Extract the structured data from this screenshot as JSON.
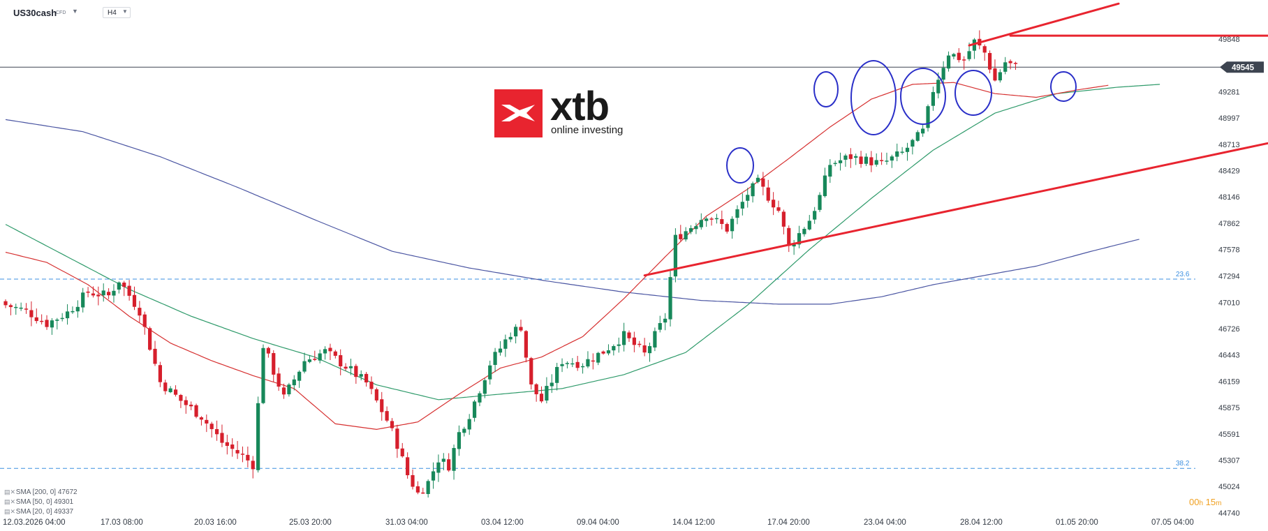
{
  "header": {
    "symbol": "US30cash",
    "instrument_type": "CFD",
    "timeframe": "H4"
  },
  "logo": {
    "wordmark": "xtb",
    "tagline": "online investing"
  },
  "indicators": [
    {
      "label": "SMA [200, 0] 47672",
      "color": "#4a55a2"
    },
    {
      "label": "SMA [50, 0] 49301",
      "color": "#2e9a6a"
    },
    {
      "label": "SMA [20, 0] 49337",
      "color": "#d63030"
    }
  ],
  "timer": {
    "hours": "00",
    "hours_unit": "h",
    "minutes": "15",
    "minutes_unit": "m"
  },
  "chart_data": {
    "type": "candlestick",
    "y_ticks": [
      49848,
      49281,
      48997,
      48713,
      48429,
      48146,
      47862,
      47578,
      47294,
      47010,
      46726,
      46443,
      46159,
      45875,
      45591,
      45307,
      45024,
      44740
    ],
    "y_tick_labels": [
      "49848",
      "49281",
      "48997",
      "48713",
      "48429",
      "48146",
      "47862",
      "47578",
      "47294",
      "47010",
      "46726",
      "46443",
      "46159",
      "45875",
      "45591",
      "45307",
      "45024",
      "44740"
    ],
    "ylim": [
      44700,
      50230
    ],
    "x_tick_labels": [
      "12.03.2026 04:00",
      "17.03 08:00",
      "20.03 16:00",
      "25.03 20:00",
      "31.03 04:00",
      "03.04 12:00",
      "09.04 04:00",
      "14.04 12:00",
      "17.04 20:00",
      "23.04 04:00",
      "28.04 12:00",
      "01.05 20:00",
      "07.05 04:00"
    ],
    "current_price": 49545,
    "current_price_label": "49545",
    "fib_levels": [
      {
        "label": "23.6",
        "value": 47260
      },
      {
        "label": "38.2",
        "value": 45220
      }
    ],
    "candle_colors": {
      "up": "#17885a",
      "down": "#d61f2c"
    },
    "candles_count": 197,
    "anchors_close": [
      [
        0,
        46980
      ],
      [
        4,
        46920
      ],
      [
        8,
        46780
      ],
      [
        12,
        46900
      ],
      [
        16,
        47120
      ],
      [
        20,
        47080
      ],
      [
        22,
        47250
      ],
      [
        26,
        46920
      ],
      [
        30,
        46150
      ],
      [
        34,
        45950
      ],
      [
        38,
        45780
      ],
      [
        42,
        45500
      ],
      [
        46,
        45350
      ],
      [
        48,
        45260
      ],
      [
        50,
        46550
      ],
      [
        54,
        45980
      ],
      [
        58,
        46380
      ],
      [
        62,
        46480
      ],
      [
        66,
        46320
      ],
      [
        70,
        46140
      ],
      [
        74,
        45740
      ],
      [
        76,
        45480
      ],
      [
        78,
        45150
      ],
      [
        80,
        44950
      ],
      [
        82,
        45070
      ],
      [
        84,
        45320
      ],
      [
        86,
        45250
      ],
      [
        88,
        45600
      ],
      [
        90,
        45800
      ],
      [
        94,
        46350
      ],
      [
        98,
        46680
      ],
      [
        100,
        46750
      ],
      [
        102,
        46100
      ],
      [
        104,
        45950
      ],
      [
        108,
        46380
      ],
      [
        112,
        46350
      ],
      [
        116,
        46480
      ],
      [
        120,
        46650
      ],
      [
        124,
        46450
      ],
      [
        128,
        46850
      ],
      [
        130,
        47700
      ],
      [
        132,
        47780
      ],
      [
        136,
        47960
      ],
      [
        140,
        47800
      ],
      [
        144,
        48180
      ],
      [
        146,
        48300
      ],
      [
        150,
        48000
      ],
      [
        152,
        47600
      ],
      [
        156,
        47900
      ],
      [
        158,
        48150
      ],
      [
        160,
        48500
      ],
      [
        164,
        48580
      ],
      [
        170,
        48500
      ],
      [
        174,
        48620
      ],
      [
        178,
        48850
      ],
      [
        180,
        49300
      ],
      [
        183,
        49700
      ],
      [
        186,
        49620
      ],
      [
        188,
        49820
      ],
      [
        190,
        49700
      ],
      [
        192,
        49400
      ],
      [
        194,
        49600
      ],
      [
        196,
        49545
      ]
    ],
    "sma_200": [
      [
        0,
        48980
      ],
      [
        15,
        48850
      ],
      [
        30,
        48580
      ],
      [
        45,
        48250
      ],
      [
        60,
        47900
      ],
      [
        75,
        47560
      ],
      [
        90,
        47380
      ],
      [
        105,
        47240
      ],
      [
        120,
        47120
      ],
      [
        135,
        47030
      ],
      [
        150,
        46990
      ],
      [
        160,
        46990
      ],
      [
        170,
        47070
      ],
      [
        180,
        47200
      ],
      [
        190,
        47300
      ],
      [
        200,
        47400
      ],
      [
        210,
        47550
      ],
      [
        220,
        47690
      ]
    ],
    "sma_50_overlay": [
      [
        0,
        47850
      ],
      [
        12,
        47500
      ],
      [
        24,
        47150
      ],
      [
        36,
        46860
      ],
      [
        48,
        46620
      ],
      [
        60,
        46420
      ],
      [
        72,
        46120
      ],
      [
        84,
        45960
      ],
      [
        96,
        46020
      ],
      [
        108,
        46080
      ],
      [
        120,
        46230
      ],
      [
        132,
        46470
      ],
      [
        144,
        46980
      ],
      [
        156,
        47580
      ],
      [
        168,
        48130
      ],
      [
        180,
        48650
      ],
      [
        192,
        49050
      ],
      [
        204,
        49260
      ],
      [
        216,
        49330
      ],
      [
        224,
        49360
      ]
    ],
    "sma_20_overlay": [
      [
        0,
        47550
      ],
      [
        8,
        47440
      ],
      [
        16,
        47200
      ],
      [
        24,
        46860
      ],
      [
        32,
        46570
      ],
      [
        40,
        46380
      ],
      [
        48,
        46220
      ],
      [
        56,
        46080
      ],
      [
        64,
        45700
      ],
      [
        72,
        45640
      ],
      [
        80,
        45720
      ],
      [
        88,
        46020
      ],
      [
        96,
        46300
      ],
      [
        104,
        46420
      ],
      [
        112,
        46640
      ],
      [
        120,
        47050
      ],
      [
        128,
        47500
      ],
      [
        136,
        47940
      ],
      [
        144,
        48230
      ],
      [
        152,
        48560
      ],
      [
        160,
        48900
      ],
      [
        168,
        49200
      ],
      [
        176,
        49360
      ],
      [
        184,
        49380
      ],
      [
        192,
        49260
      ],
      [
        200,
        49220
      ],
      [
        208,
        49300
      ],
      [
        214,
        49350
      ]
    ],
    "trendlines": [
      {
        "kind": "channel-top",
        "points": [
          [
            187,
            49780
          ],
          [
            216,
            50230
          ]
        ]
      },
      {
        "kind": "resistance",
        "points": [
          [
            195,
            49885
          ],
          [
            263,
            49885
          ]
        ]
      },
      {
        "kind": "channel-bottom",
        "points": [
          [
            124,
            47300
          ],
          [
            270,
            49020
          ]
        ]
      },
      {
        "kind": "short-level",
        "points": [
          [
            247,
            49290
          ],
          [
            256,
            49290
          ]
        ]
      }
    ]
  }
}
